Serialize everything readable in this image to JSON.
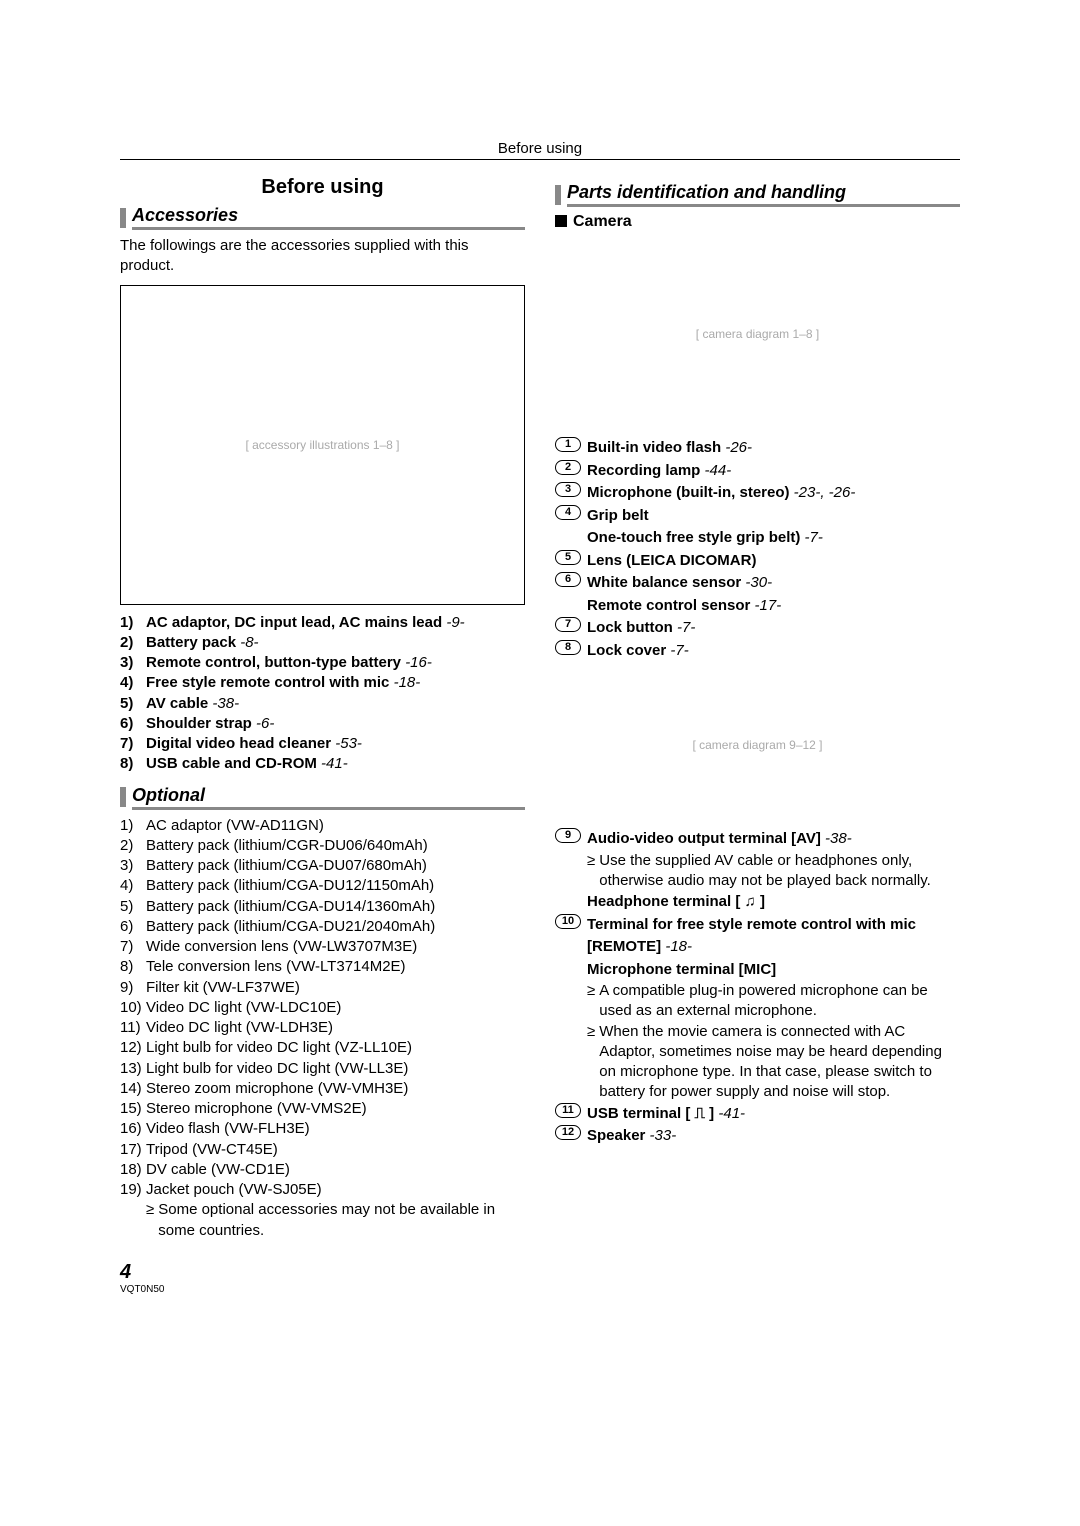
{
  "header": "Before using",
  "left": {
    "sectionTitle": "Before using",
    "accessoriesHeading": "Accessories",
    "accessoriesIntro": "The followings are the accessories supplied with this product.",
    "accList": [
      {
        "n": "1)",
        "t": "AC adaptor, DC input lead, AC mains lead ",
        "r": "-9-"
      },
      {
        "n": "2)",
        "t": "Battery pack ",
        "r": "-8-"
      },
      {
        "n": "3)",
        "t": "Remote control, button-type battery ",
        "r": "-16-"
      },
      {
        "n": "4)",
        "t": "Free style remote control with mic ",
        "r": "-18-"
      },
      {
        "n": "5)",
        "t": "AV cable ",
        "r": "-38-"
      },
      {
        "n": "6)",
        "t": "Shoulder strap ",
        "r": "-6-"
      },
      {
        "n": "7)",
        "t": "Digital video head cleaner ",
        "r": "-53-"
      },
      {
        "n": "8)",
        "t": "USB cable and CD-ROM ",
        "r": "-41-"
      }
    ],
    "optionalHeading": "Optional",
    "optList": [
      {
        "n": "1)",
        "t": "AC adaptor (VW-AD11GN)"
      },
      {
        "n": "2)",
        "t": "Battery pack (lithium/CGR-DU06/640mAh)"
      },
      {
        "n": "3)",
        "t": "Battery pack (lithium/CGA-DU07/680mAh)"
      },
      {
        "n": "4)",
        "t": "Battery pack (lithium/CGA-DU12/1150mAh)"
      },
      {
        "n": "5)",
        "t": "Battery pack (lithium/CGA-DU14/1360mAh)"
      },
      {
        "n": "6)",
        "t": "Battery pack (lithium/CGA-DU21/2040mAh)"
      },
      {
        "n": "7)",
        "t": "Wide conversion lens (VW-LW3707M3E)"
      },
      {
        "n": "8)",
        "t": "Tele conversion lens (VW-LT3714M2E)"
      },
      {
        "n": "9)",
        "t": "Filter kit (VW-LF37WE)"
      },
      {
        "n": "10)",
        "t": "Video DC light (VW-LDC10E)"
      },
      {
        "n": "11)",
        "t": "Video DC light (VW-LDH3E)"
      },
      {
        "n": "12)",
        "t": "Light bulb for video DC light (VZ-LL10E)"
      },
      {
        "n": "13)",
        "t": "Light bulb for video DC light (VW-LL3E)"
      },
      {
        "n": "14)",
        "t": "Stereo zoom microphone (VW-VMH3E)"
      },
      {
        "n": "15)",
        "t": "Stereo microphone (VW-VMS2E)"
      },
      {
        "n": "16)",
        "t": "Video flash (VW-FLH3E)"
      },
      {
        "n": "17)",
        "t": "Tripod (VW-CT45E)"
      },
      {
        "n": "18)",
        "t": "DV cable (VW-CD1E)"
      },
      {
        "n": "19)",
        "t": "Jacket pouch (VW-SJ05E)"
      }
    ],
    "optNote": "Some optional accessories may not be available in some countries."
  },
  "right": {
    "partsHeading": "Parts identification and handling",
    "cameraHeading": "Camera",
    "parts1": [
      {
        "n": "1",
        "t": "Built-in video flash ",
        "r": "-26-"
      },
      {
        "n": "2",
        "t": "Recording lamp ",
        "r": "-44-"
      },
      {
        "n": "3",
        "t": "Microphone (built-in, stereo) ",
        "r": "-23-, -26-"
      },
      {
        "n": "4",
        "t": "Grip belt",
        "r": "",
        "extra": "One-touch free style grip belt) ",
        "extraRef": "-7-"
      },
      {
        "n": "5",
        "t": "Lens (LEICA DICOMAR)",
        "r": ""
      },
      {
        "n": "6",
        "t": "White balance sensor ",
        "r": "-30-",
        "extra": "Remote control sensor ",
        "extraRef": "-17-"
      },
      {
        "n": "7",
        "t": "Lock button ",
        "r": "-7-"
      },
      {
        "n": "8",
        "t": "Lock cover ",
        "r": "-7-"
      }
    ],
    "parts2": [
      {
        "n": "9",
        "t": "Audio-video output terminal [AV] ",
        "r": "-38-",
        "bullets": [
          "Use the supplied AV cable or headphones only, otherwise audio may not be played back normally."
        ],
        "after": "Headphone terminal [ ♫ ]"
      },
      {
        "n": "10",
        "t": "Terminal for free style remote control with mic [REMOTE] ",
        "r": "-18-",
        "after": "Microphone terminal [MIC]",
        "bullets": [
          "A compatible plug-in powered microphone can be used as an external microphone.",
          "When the movie camera is connected with AC Adaptor, sometimes noise may be heard depending on microphone type. In that case, please switch to battery for power supply and noise will stop."
        ]
      },
      {
        "n": "11",
        "t": "USB terminal [ ⎍ ] ",
        "r": "-41-"
      },
      {
        "n": "12",
        "t": "Speaker ",
        "r": "-33-"
      }
    ]
  },
  "pageNum": "4",
  "docCode": "VQT0N50"
}
